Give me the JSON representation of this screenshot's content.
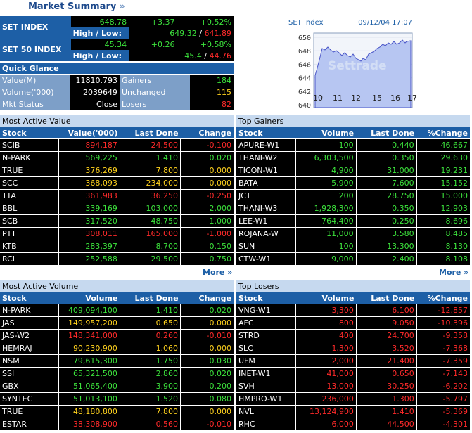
{
  "title": "Market Summary",
  "title_chevrons": "»",
  "set_index": {
    "label": "SET INDEX",
    "value": "648.78",
    "change": "+3.37",
    "pct": "+0.52%",
    "hl_label": "High / Low:",
    "high": "649.32",
    "sep": " / ",
    "low": "641.89"
  },
  "set50_index": {
    "label": "SET 50 INDEX",
    "value": "45.34",
    "change": "+0.26",
    "pct": "+0.58%",
    "hl_label": "High / Low:",
    "high": "45.4",
    "sep": " / ",
    "low": "44.76"
  },
  "quick_glance": {
    "header": "Quick Glance",
    "value_label": "Value(M)",
    "value": "11810.793",
    "gainers_label": "Gainers",
    "gainers": "184",
    "volume_label": "Volume('000)",
    "volume": "2039649",
    "unchanged_label": "Unchanged",
    "unchanged": "115",
    "status_label": "Mkt Status",
    "status": "Close",
    "losers_label": "Losers",
    "losers": "82"
  },
  "chart": {
    "title": "SET Index",
    "timestamp": "09/12/04 17:07",
    "watermark": "Settrade",
    "y_ticks": [
      "650",
      "648",
      "646",
      "644",
      "642",
      "640"
    ],
    "x_ticks": [
      "10",
      "11",
      "12",
      "15",
      "16",
      "17"
    ]
  },
  "colors": {
    "header": "#1d5fa6",
    "subhead": "#c6d9ef",
    "gain": "#3ce33c",
    "loss": "#ff2a2a",
    "flat": "#ffd21e"
  },
  "most_active_value": {
    "title": "Most Active Value",
    "cols": [
      "Stock",
      "Value('000)",
      "Last Done",
      "Change"
    ],
    "rows": [
      {
        "s": "SCIB",
        "v": "894,187",
        "l": "24.500",
        "c": "-0.100",
        "t": "red"
      },
      {
        "s": "N-PARK",
        "v": "569,225",
        "l": "1.410",
        "c": "0.020",
        "t": "grn"
      },
      {
        "s": "TRUE",
        "v": "376,269",
        "l": "7.800",
        "c": "0.000",
        "t": "yel"
      },
      {
        "s": "SCC",
        "v": "368,093",
        "l": "234.000",
        "c": "0.000",
        "t": "yel"
      },
      {
        "s": "TTA",
        "v": "361,983",
        "l": "36.250",
        "c": "-0.250",
        "t": "red"
      },
      {
        "s": "BBL",
        "v": "339,169",
        "l": "103.000",
        "c": "2.000",
        "t": "grn"
      },
      {
        "s": "SCB",
        "v": "317,520",
        "l": "48.750",
        "c": "1.000",
        "t": "grn"
      },
      {
        "s": "PTT",
        "v": "308,011",
        "l": "165.000",
        "c": "-1.000",
        "t": "red"
      },
      {
        "s": "KTB",
        "v": "283,397",
        "l": "8.700",
        "c": "0.150",
        "t": "grn"
      },
      {
        "s": "RCL",
        "v": "252,588",
        "l": "29.500",
        "c": "0.750",
        "t": "grn"
      }
    ],
    "more": "More »"
  },
  "top_gainers": {
    "title": "Top Gainers",
    "cols": [
      "Stock",
      "Volume",
      "Last Done",
      "%Change"
    ],
    "rows": [
      {
        "s": "APURE-W1",
        "v": "100",
        "l": "0.440",
        "c": "46.667",
        "t": "grn"
      },
      {
        "s": "THANI-W2",
        "v": "6,303,500",
        "l": "0.350",
        "c": "29.630",
        "t": "grn"
      },
      {
        "s": "TICON-W1",
        "v": "4,900",
        "l": "31.000",
        "c": "19.231",
        "t": "grn"
      },
      {
        "s": "BATA",
        "v": "5,900",
        "l": "7.600",
        "c": "15.152",
        "t": "grn"
      },
      {
        "s": "JCT",
        "v": "200",
        "l": "28.750",
        "c": "15.000",
        "t": "grn"
      },
      {
        "s": "THANI-W3",
        "v": "1,928,300",
        "l": "0.350",
        "c": "12.903",
        "t": "grn"
      },
      {
        "s": "LEE-W1",
        "v": "764,400",
        "l": "0.250",
        "c": "8.696",
        "t": "grn"
      },
      {
        "s": "ROJANA-W",
        "v": "11,000",
        "l": "3.580",
        "c": "8.485",
        "t": "grn"
      },
      {
        "s": "SUN",
        "v": "100",
        "l": "13.300",
        "c": "8.130",
        "t": "grn"
      },
      {
        "s": "CTW-W1",
        "v": "9,000",
        "l": "2.400",
        "c": "8.108",
        "t": "grn"
      }
    ],
    "more": "More »"
  },
  "most_active_volume": {
    "title": "Most Active Volume",
    "cols": [
      "Stock",
      "Volume",
      "Last Done",
      "Change"
    ],
    "rows": [
      {
        "s": "N-PARK",
        "v": "409,094,100",
        "l": "1.410",
        "c": "0.020",
        "t": "grn"
      },
      {
        "s": "JAS",
        "v": "149,957,200",
        "l": "0.650",
        "c": "0.000",
        "t": "yel"
      },
      {
        "s": "JAS-W2",
        "v": "148,341,000",
        "l": "0.260",
        "c": "-0.010",
        "t": "red"
      },
      {
        "s": "HEMRAJ",
        "v": "90,230,900",
        "l": "1.060",
        "c": "0.000",
        "t": "yel"
      },
      {
        "s": "NSM",
        "v": "79,615,300",
        "l": "1.750",
        "c": "0.030",
        "t": "grn"
      },
      {
        "s": "SSI",
        "v": "65,321,500",
        "l": "2.860",
        "c": "0.020",
        "t": "grn"
      },
      {
        "s": "GBX",
        "v": "51,065,400",
        "l": "3.900",
        "c": "0.200",
        "t": "grn"
      },
      {
        "s": "SYNTEC",
        "v": "51,013,100",
        "l": "1.520",
        "c": "0.080",
        "t": "grn"
      },
      {
        "s": "TRUE",
        "v": "48,180,800",
        "l": "7.800",
        "c": "0.000",
        "t": "yel"
      },
      {
        "s": "ESTAR",
        "v": "38,308,900",
        "l": "0.560",
        "c": "-0.010",
        "t": "red"
      }
    ]
  },
  "top_losers": {
    "title": "Top Losers",
    "cols": [
      "Stock",
      "Volume",
      "Last Done",
      "%Change"
    ],
    "rows": [
      {
        "s": "VNG-W1",
        "v": "3,300",
        "l": "6.100",
        "c": "-12.857",
        "t": "red"
      },
      {
        "s": "AFC",
        "v": "800",
        "l": "9.050",
        "c": "-10.396",
        "t": "red"
      },
      {
        "s": "STRD",
        "v": "400",
        "l": "24.700",
        "c": "-9.358",
        "t": "red"
      },
      {
        "s": "SLC",
        "v": "1,300",
        "l": "3.520",
        "c": "-7.368",
        "t": "red"
      },
      {
        "s": "UFM",
        "v": "2,000",
        "l": "21.400",
        "c": "-7.359",
        "t": "red"
      },
      {
        "s": "INET-W1",
        "v": "41,000",
        "l": "0.650",
        "c": "-7.143",
        "t": "red"
      },
      {
        "s": "SVH",
        "v": "13,000",
        "l": "30.250",
        "c": "-6.202",
        "t": "red"
      },
      {
        "s": "HMPRO-W1",
        "v": "236,000",
        "l": "1.300",
        "c": "-5.797",
        "t": "red"
      },
      {
        "s": "NVL",
        "v": "13,124,900",
        "l": "1.410",
        "c": "-5.369",
        "t": "red"
      },
      {
        "s": "RHC",
        "v": "6,000",
        "l": "44.500",
        "c": "-4.301",
        "t": "red"
      }
    ]
  }
}
